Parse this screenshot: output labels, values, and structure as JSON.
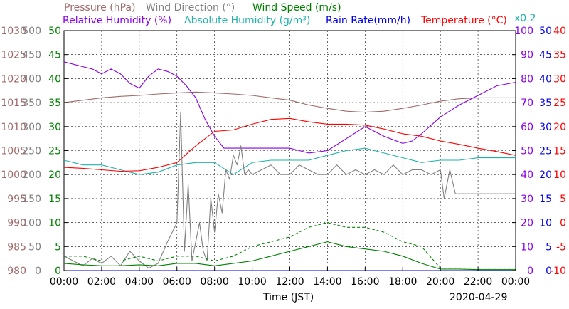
{
  "chart_data": {
    "type": "line",
    "date": "2020-04-29",
    "xlabel": "Time (JST)",
    "x_ticks": [
      "00:00",
      "02:00",
      "04:00",
      "06:00",
      "08:00",
      "10:00",
      "12:00",
      "14:00",
      "16:00",
      "18:00",
      "20:00",
      "22:00",
      "00:00"
    ],
    "xlim_hours": [
      0,
      24
    ],
    "grid": true,
    "legend": {
      "row1": [
        {
          "name": "Pressure (hPa)",
          "color": "#a06a6a"
        },
        {
          "name": "Wind Direction (°)",
          "color": "#808080"
        },
        {
          "name": "Wind Speed (m/s)",
          "color": "#008000"
        }
      ],
      "row2": [
        {
          "name": "Relative Humidity (%)",
          "color": "#8a00e6"
        },
        {
          "name": "Absolute Humidity (g/m³)",
          "color": "#20b2aa"
        },
        {
          "name": "Rain Rate(mm/h)",
          "color": "#0000e0"
        },
        {
          "name": "Temperature (°C)",
          "color": "#ff0000"
        }
      ],
      "multiplier_note": "x0.2"
    },
    "axes": {
      "pressure": {
        "color": "#a06a6a",
        "ylim": [
          980,
          1030
        ],
        "ticks": [
          "1030",
          "1025",
          "1020",
          "1015",
          "1010",
          "1005",
          "1000",
          "995",
          "990",
          "985",
          "980"
        ]
      },
      "wind_direction": {
        "color": "#808080",
        "ylim": [
          0,
          500
        ],
        "ticks": [
          "500",
          "450",
          "400",
          "350",
          "300",
          "250",
          "200",
          "150",
          "100",
          "50",
          "0"
        ]
      },
      "wind_speed": {
        "color": "#008000",
        "ylim": [
          0,
          50
        ],
        "ticks": [
          "50",
          "45",
          "40",
          "35",
          "30",
          "25",
          "20",
          "15",
          "10",
          "5",
          "0"
        ]
      },
      "humidity": {
        "color": "#8a00e6",
        "ylim": [
          0,
          100
        ],
        "ticks": [
          "100",
          "90",
          "80",
          "70",
          "60",
          "50",
          "40",
          "30",
          "20",
          "10",
          "0"
        ]
      },
      "rain_rate": {
        "color": "#0000e0",
        "ylim": [
          0,
          50
        ],
        "ticks": [
          "50",
          "45",
          "40",
          "35",
          "30",
          "25",
          "20",
          "15",
          "10",
          "5",
          "0"
        ]
      },
      "temperature": {
        "color": "#ff0000",
        "ylim": [
          -10,
          40
        ],
        "ticks": [
          "40",
          "35",
          "30",
          "25",
          "20",
          "15",
          "10",
          "5",
          "0",
          "-5",
          "-10"
        ]
      }
    },
    "series": [
      {
        "name": "Pressure (hPa)",
        "axis": "pressure",
        "color": "#a06a6a",
        "style": "solid",
        "x": [
          0,
          1,
          2,
          3,
          4,
          5,
          6,
          7,
          8,
          9,
          10,
          11,
          12,
          13,
          14,
          15,
          16,
          17,
          18,
          19,
          20,
          21,
          22,
          23,
          24
        ],
        "y": [
          1015,
          1015.5,
          1016,
          1016.3,
          1016.5,
          1016.8,
          1017,
          1017.2,
          1017,
          1016.8,
          1016.5,
          1016,
          1015.5,
          1014.5,
          1013.8,
          1013.2,
          1013,
          1013.2,
          1013.8,
          1014.5,
          1015.3,
          1015.8,
          1016,
          1016,
          1016
        ]
      },
      {
        "name": "Relative Humidity (%)",
        "axis": "humidity",
        "color": "#8a00e6",
        "style": "solid",
        "x": [
          0,
          1,
          1.5,
          2,
          2.5,
          3,
          3.5,
          4,
          4.5,
          5,
          5.5,
          6,
          6.5,
          7,
          7.5,
          8,
          8.5,
          9,
          10,
          11,
          12,
          13,
          14,
          15,
          16,
          17,
          18,
          18.5,
          19,
          20,
          21,
          22,
          23,
          24
        ],
        "y": [
          87,
          85,
          84,
          82,
          84,
          82,
          78,
          76,
          81,
          84,
          83,
          81,
          77,
          72,
          63,
          56,
          51,
          51,
          51,
          51,
          51,
          49,
          50,
          55,
          60,
          56,
          53,
          54,
          57,
          64,
          69,
          73,
          77,
          78.5
        ]
      },
      {
        "name": "Absolute Humidity (g/m³)",
        "axis": "wind_speed",
        "color": "#20b2aa",
        "style": "solid",
        "x": [
          0,
          1,
          2,
          3,
          4,
          5,
          6,
          7,
          8,
          9,
          10,
          11,
          12,
          13,
          14,
          15,
          16,
          17,
          18,
          19,
          20,
          21,
          22,
          23,
          24
        ],
        "y": [
          23,
          22,
          22,
          21,
          20,
          20.5,
          22,
          22.5,
          22.5,
          20,
          22.5,
          23,
          23,
          23,
          24,
          25,
          25.5,
          24.5,
          23.5,
          22.5,
          23,
          23,
          23.5,
          23.5,
          23.5
        ]
      },
      {
        "name": "Temperature (°C)",
        "axis": "temperature",
        "color": "#ff0000",
        "style": "solid",
        "x": [
          0,
          1,
          2,
          3,
          4,
          5,
          6,
          7,
          8,
          9,
          10,
          11,
          12,
          13,
          14,
          15,
          16,
          17,
          18,
          19,
          20,
          21,
          22,
          23,
          24
        ],
        "y": [
          11.5,
          11.3,
          11,
          10.7,
          10.8,
          11.5,
          12.5,
          16,
          19,
          19.3,
          20.5,
          21.5,
          21.7,
          21,
          20.5,
          20.5,
          20.3,
          19.5,
          18.5,
          18,
          17,
          16.3,
          15.5,
          14.8,
          14
        ]
      },
      {
        "name": "Wind Direction (°)",
        "axis": "wind_direction",
        "color": "#808080",
        "style": "solid",
        "x": [
          0,
          0.5,
          1,
          1.5,
          2,
          2.5,
          3,
          3.5,
          4,
          4.5,
          5,
          5.5,
          6,
          6.2,
          6.4,
          6.6,
          6.8,
          7,
          7.2,
          7.4,
          7.6,
          7.8,
          8,
          8.2,
          8.4,
          8.6,
          8.8,
          9,
          9.2,
          9.4,
          9.6,
          9.8,
          10,
          10.5,
          11,
          11.5,
          12,
          12.5,
          13,
          13.5,
          14,
          14.5,
          15,
          15.5,
          16,
          16.5,
          17,
          17.5,
          18,
          18.5,
          19,
          19.5,
          20,
          20.2,
          20.5,
          20.8,
          21,
          22,
          23,
          24
        ],
        "y": [
          30,
          20,
          10,
          25,
          15,
          30,
          10,
          40,
          20,
          5,
          15,
          60,
          100,
          330,
          40,
          180,
          20,
          60,
          100,
          40,
          20,
          150,
          80,
          160,
          120,
          210,
          190,
          240,
          220,
          260,
          200,
          210,
          200,
          210,
          220,
          200,
          200,
          220,
          210,
          200,
          200,
          220,
          200,
          210,
          200,
          210,
          200,
          220,
          200,
          210,
          210,
          200,
          210,
          150,
          210,
          160,
          160,
          160,
          160,
          160
        ]
      },
      {
        "name": "Wind Speed (m/s) max",
        "axis": "wind_speed",
        "color": "#008000",
        "style": "dashed",
        "x": [
          0,
          1,
          2,
          3,
          4,
          5,
          6,
          7,
          8,
          9,
          10,
          11,
          12,
          13,
          14,
          15,
          16,
          17,
          18,
          19,
          20,
          21,
          22,
          23,
          24
        ],
        "y": [
          3,
          3,
          2,
          2,
          3,
          2,
          3,
          3,
          2,
          3,
          5,
          6,
          7,
          9,
          10,
          9,
          9,
          8,
          6,
          5,
          0.5,
          0.5,
          0.5,
          0.5,
          0.5
        ]
      },
      {
        "name": "Wind Speed (m/s) mean",
        "axis": "wind_speed",
        "color": "#008000",
        "style": "solid",
        "x": [
          0,
          1,
          2,
          3,
          4,
          5,
          6,
          7,
          8,
          9,
          10,
          11,
          12,
          13,
          14,
          15,
          16,
          17,
          18,
          19,
          20,
          21,
          22,
          23,
          24
        ],
        "y": [
          1.5,
          1.2,
          1,
          1,
          1.2,
          1,
          1.5,
          1.5,
          1,
          1.5,
          2,
          3,
          4,
          5,
          6,
          5,
          4.5,
          4,
          3,
          1.5,
          0.3,
          0.3,
          0.2,
          0.2,
          0.2
        ]
      },
      {
        "name": "Rain Rate(mm/h)",
        "axis": "rain_rate",
        "color": "#0000e0",
        "style": "solid",
        "x": [
          0,
          24
        ],
        "y": [
          0,
          0
        ]
      }
    ]
  }
}
